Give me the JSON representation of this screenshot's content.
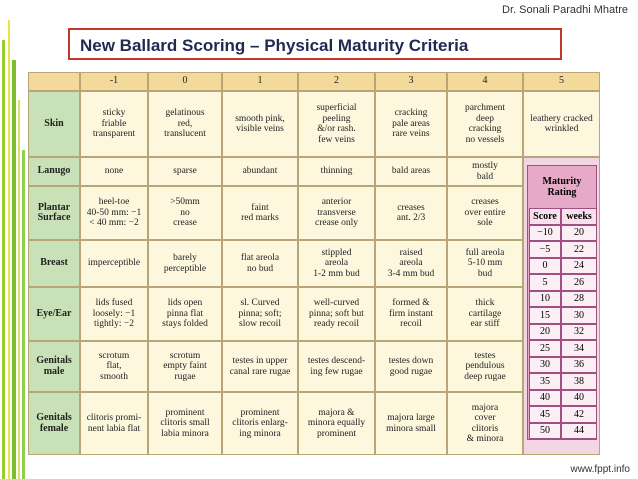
{
  "author": "Dr. Sonali Paradhi Mhatre",
  "title": "New Ballard Scoring – Physical Maturity Criteria",
  "table": {
    "columns": [
      "-1",
      "0",
      "1",
      "2",
      "3",
      "4",
      "5"
    ],
    "rows": [
      {
        "label": "Skin",
        "cells": [
          "sticky\nfriable\ntransparent",
          "gelatinous\nred,\ntranslucent",
          "smooth pink,\nvisible veins",
          "superficial\npeeling\n&/or rash.\nfew veins",
          "cracking\npale areas\nrare veins",
          "parchment\ndeep\ncracking\nno vessels",
          "leathery cracked\nwrinkled"
        ]
      },
      {
        "label": "Lanugo",
        "cells": [
          "none",
          "sparse",
          "abundant",
          "thinning",
          "bald areas",
          "mostly\nbald"
        ]
      },
      {
        "label": "Plantar\nSurface",
        "cells": [
          "heel-toe\n40-50 mm: −1\n< 40 mm: −2",
          ">50mm\nno\ncrease",
          "faint\nred marks",
          "anterior\ntransverse\ncrease only",
          "creases\nant. 2/3",
          "creases\nover entire\nsole"
        ]
      },
      {
        "label": "Breast",
        "cells": [
          "imperceptible",
          "barely\nperceptible",
          "flat areola\nno bud",
          "stippled\nareola\n1-2 mm bud",
          "raised\nareola\n3-4 mm bud",
          "full areola\n5-10 mm\nbud"
        ]
      },
      {
        "label": "Eye/Ear",
        "cells": [
          "lids fused\nloosely: −1\ntightly: −2",
          "lids open\npinna flat\nstays folded",
          "sl. Curved\npinna; soft;\nslow recoil",
          "well-curved\npinna; soft but\nready recoil",
          "formed &\nfirm instant\nrecoil",
          "thick\ncartilage\near stiff"
        ]
      },
      {
        "label": "Genitals\nmale",
        "cells": [
          "scrotum\nflat,\nsmooth",
          "scrotum\nempty faint\nrugae",
          "testes in upper\ncanal rare rugae",
          "testes descend-\ning few rugae",
          "testes down\ngood rugae",
          "testes\npendulous\ndeep rugae"
        ]
      },
      {
        "label": "Genitals\nfemale",
        "cells": [
          "clitoris promi-\nnent labia flat",
          "prominent\nclitoris small\nlabia minora",
          "prominent\nclitoris enlarg-\ning minora",
          "majora &\nminora equally\nprominent",
          "majora large\nminora small",
          "majora\ncover\nclitoris\n& minora"
        ]
      }
    ]
  },
  "maturity": {
    "title": "Maturity\nRating",
    "headers": [
      "Score",
      "weeks"
    ],
    "rows": [
      [
        "−10",
        "20"
      ],
      [
        "−5",
        "22"
      ],
      [
        "0",
        "24"
      ],
      [
        "5",
        "26"
      ],
      [
        "10",
        "28"
      ],
      [
        "15",
        "30"
      ],
      [
        "20",
        "32"
      ],
      [
        "25",
        "34"
      ],
      [
        "30",
        "36"
      ],
      [
        "35",
        "38"
      ],
      [
        "40",
        "40"
      ],
      [
        "45",
        "42"
      ],
      [
        "50",
        "44"
      ]
    ]
  },
  "footer": "www.fppt.info"
}
